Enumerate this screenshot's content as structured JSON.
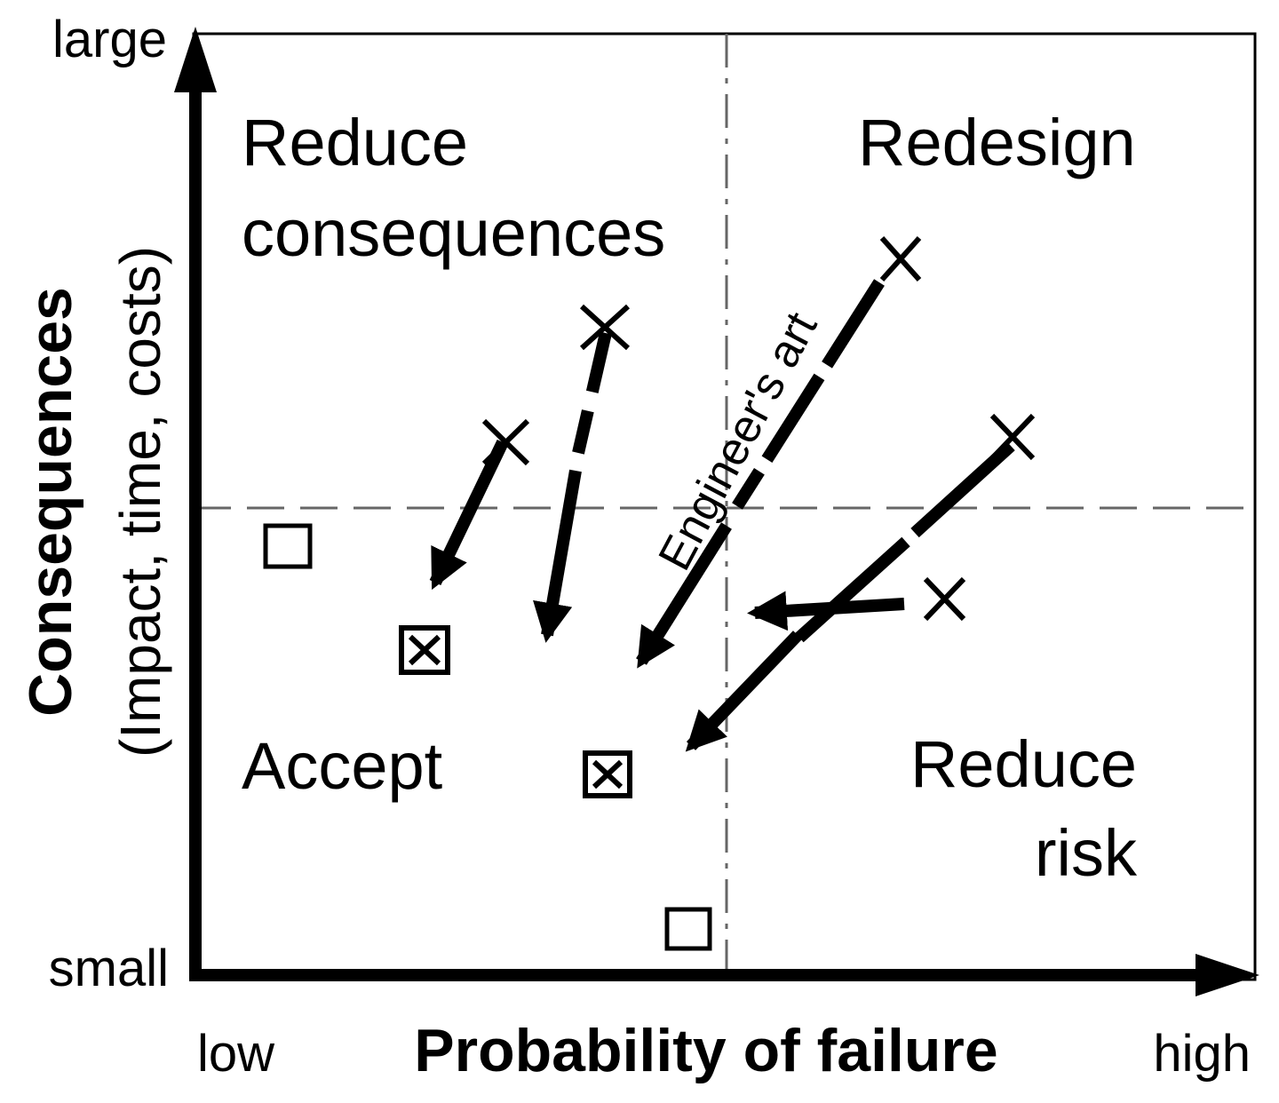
{
  "y_axis": {
    "top_label": "large",
    "bottom_label": "small",
    "title_line1": "Consequences",
    "title_line2": "(Impact, time, costs)"
  },
  "x_axis": {
    "left_label": "low",
    "right_label": "high",
    "title": "Probability of failure"
  },
  "quadrants": {
    "top_left_line1": "Reduce",
    "top_left_line2": "consequences",
    "top_right": "Redesign",
    "bottom_left": "Accept",
    "bottom_right_line1": "Reduce",
    "bottom_right_line2": "risk"
  },
  "annotation": "Engineer's art",
  "markers": {
    "initial": "x-mark",
    "acceptable": "open-square",
    "mitigated": "crossed-square"
  },
  "colors": {
    "ink": "#000000",
    "grid": "#666666",
    "background": "#ffffff"
  }
}
